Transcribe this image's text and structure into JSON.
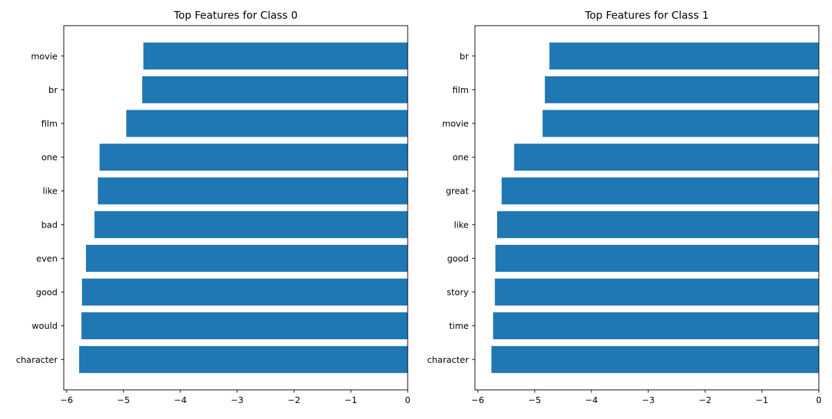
{
  "chart_data": [
    {
      "type": "bar",
      "orientation": "horizontal",
      "title": "Top Features for Class 0",
      "categories": [
        "movie",
        "br",
        "film",
        "one",
        "like",
        "bad",
        "even",
        "good",
        "would",
        "character"
      ],
      "values": [
        -4.65,
        -4.67,
        -4.95,
        -5.42,
        -5.45,
        -5.51,
        -5.66,
        -5.73,
        -5.74,
        -5.78
      ],
      "xlim": [
        -6.05,
        0
      ],
      "xticks": [
        -6,
        -5,
        -4,
        -3,
        -2,
        -1,
        0
      ],
      "xtick_labels": [
        "−6",
        "−5",
        "−4",
        "−3",
        "−2",
        "−1",
        "0"
      ],
      "bar_color": "#1f77b4"
    },
    {
      "type": "bar",
      "orientation": "horizontal",
      "title": "Top Features for Class 1",
      "categories": [
        "br",
        "film",
        "movie",
        "one",
        "great",
        "like",
        "good",
        "story",
        "time",
        "character"
      ],
      "values": [
        -4.74,
        -4.82,
        -4.86,
        -5.36,
        -5.58,
        -5.66,
        -5.69,
        -5.7,
        -5.73,
        -5.76
      ],
      "xlim": [
        -6.05,
        0
      ],
      "xticks": [
        -6,
        -5,
        -4,
        -3,
        -2,
        -1,
        0
      ],
      "xtick_labels": [
        "−6",
        "−5",
        "−4",
        "−3",
        "−2",
        "−1",
        "0"
      ],
      "bar_color": "#1f77b4"
    }
  ]
}
